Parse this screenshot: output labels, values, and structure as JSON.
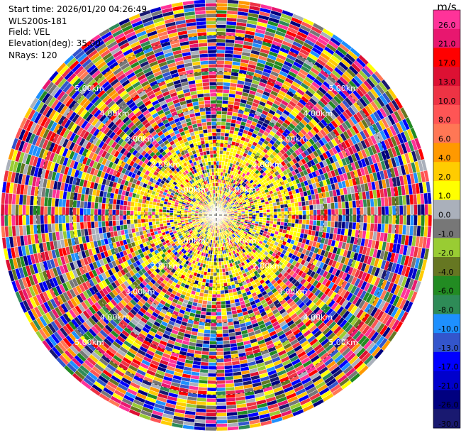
{
  "header": {
    "start_time": "Start time: 2026/01/20 04:26:49",
    "radar_name": "WLS200s-181",
    "field": "Field: VEL",
    "elevation": "Elevation(deg): 35.00",
    "nrays": "NRays: 120"
  },
  "chart_data": {
    "type": "ppi",
    "field": "VEL",
    "rays": 120,
    "range_rings": [
      {
        "range_km": 1.0,
        "label": "1.00km"
      },
      {
        "range_km": 2.0,
        "label": "2.00km"
      },
      {
        "range_km": 3.0,
        "label": "3.00km"
      },
      {
        "range_km": 4.0,
        "label": "4.00km"
      },
      {
        "range_km": 5.0,
        "label": "5.00km"
      }
    ],
    "max_range_km": 6.0,
    "colorbar": {
      "unit": "m/s",
      "ticks": [
        "26.0",
        "21.0",
        "17.0",
        "13.0",
        "10.0",
        "8.0",
        "6.0",
        "4.0",
        "2.0",
        "1.0",
        "0.0",
        "-1.0",
        "-2.0",
        "-4.0",
        "-6.0",
        "-8.0",
        "-10.0",
        "-13.0",
        "-17.0",
        "-21.0",
        "-26.0",
        "-30.0"
      ],
      "colors": [
        "#ff3399",
        "#e8176f",
        "#ff0000",
        "#dd1133",
        "#ee3344",
        "#ff5555",
        "#ff7755",
        "#ff9900",
        "#ffcc00",
        "#ffff00",
        "#aab0bb",
        "#777777",
        "#99cc33",
        "#667722",
        "#228b22",
        "#2e8b57",
        "#1e90ff",
        "#3355cc",
        "#0000ff",
        "#0000cc",
        "#000080",
        "#191970"
      ]
    }
  }
}
